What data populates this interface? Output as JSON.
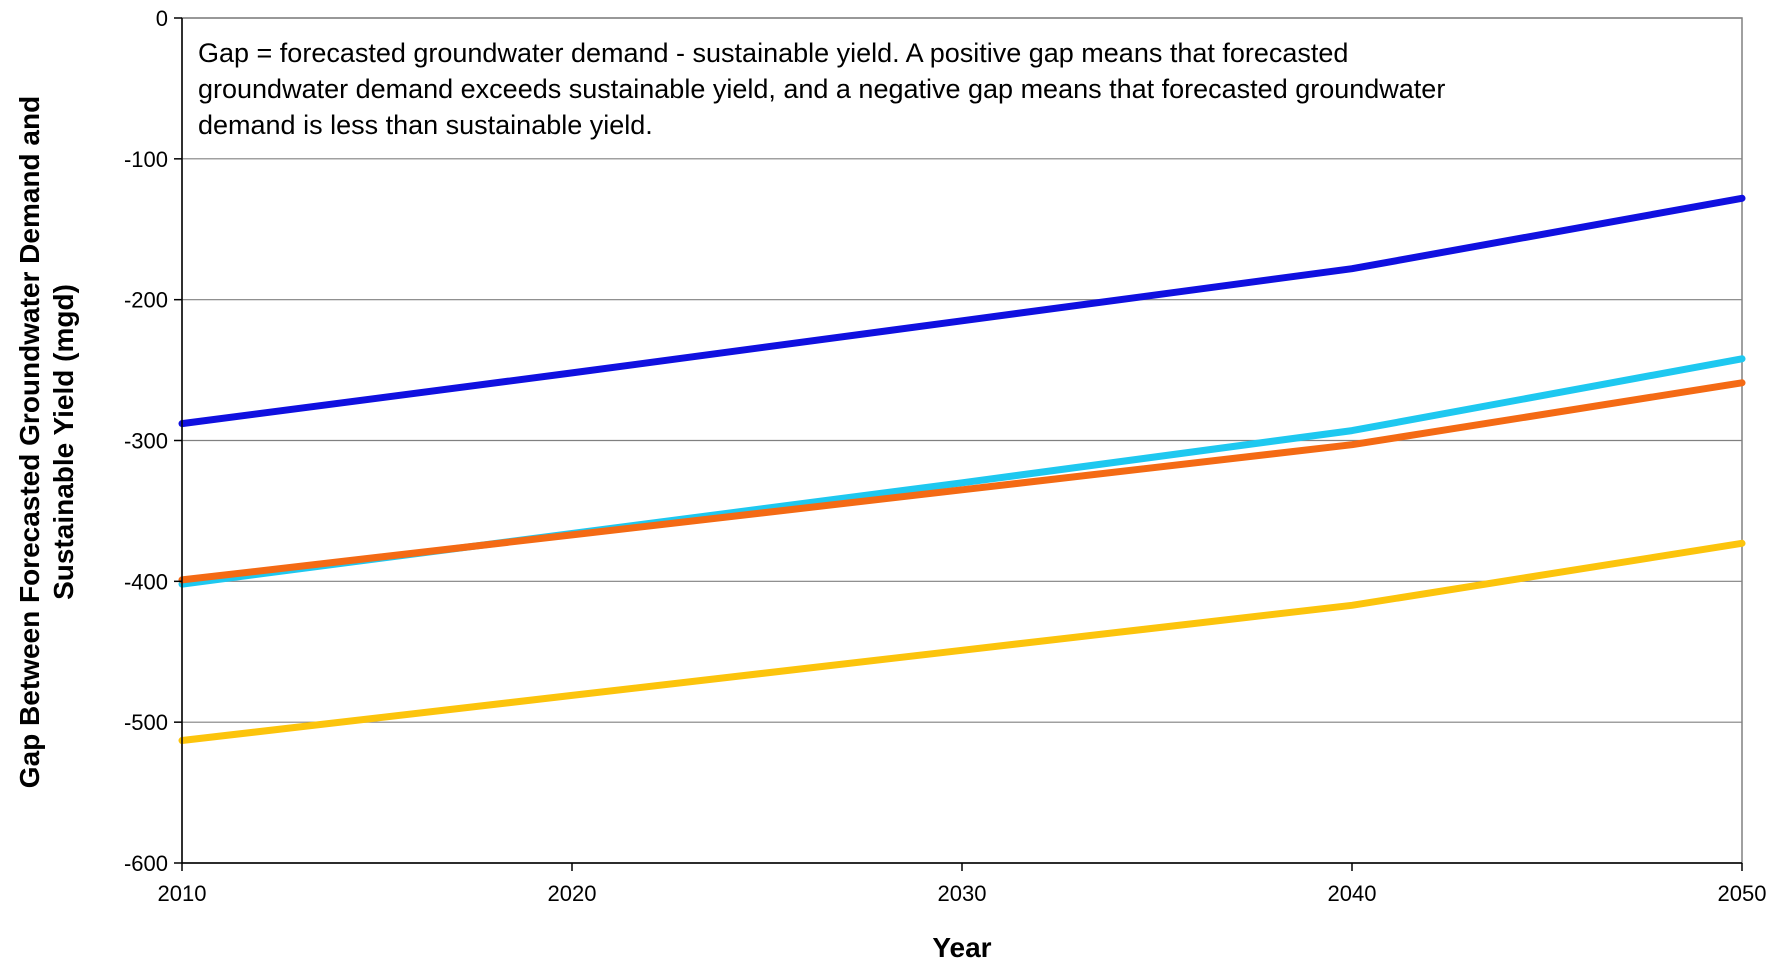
{
  "chart_data": {
    "type": "line",
    "title": "",
    "xlabel": "Year",
    "ylabel_lines": [
      "Gap Between Forecasted Groundwater Demand and",
      "Sustainable Yield (mgd)"
    ],
    "x": [
      2010,
      2020,
      2030,
      2040,
      2050
    ],
    "xlim": [
      2010,
      2050
    ],
    "ylim": [
      -600,
      0
    ],
    "x_ticks": [
      "2010",
      "2020",
      "2030",
      "2040",
      "2050"
    ],
    "y_ticks": [
      "0",
      "-100",
      "-200",
      "-300",
      "-400",
      "-500",
      "-600"
    ],
    "y_tick_values": [
      0,
      -100,
      -200,
      -300,
      -400,
      -500,
      -600
    ],
    "grid": "horizontal",
    "annotation_lines": [
      "Gap = forecasted groundwater demand - sustainable yield.  A positive gap means that forecasted",
      "groundwater demand exceeds sustainable yield, and a negative gap means that forecasted groundwater",
      "demand is less than sustainable yield."
    ],
    "series": [
      {
        "color": "#1010e0",
        "values": [
          -288,
          -252,
          -215,
          -178,
          -128
        ]
      },
      {
        "color": "#1ec8f0",
        "values": [
          -402,
          -366,
          -330,
          -293,
          -242
        ]
      },
      {
        "color": "#f46a14",
        "values": [
          -399,
          -367,
          -335,
          -303,
          -259
        ]
      },
      {
        "color": "#fcc40c",
        "values": [
          -513,
          -481,
          -449,
          -417,
          -373
        ]
      }
    ]
  }
}
